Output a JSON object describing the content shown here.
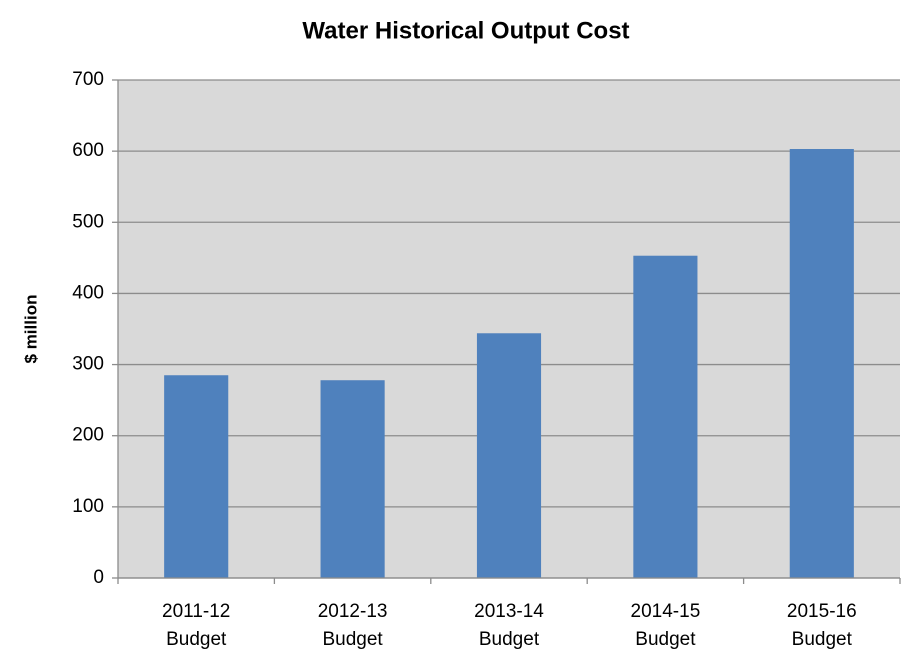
{
  "chart_data": {
    "type": "bar",
    "title": "Water Historical Output Cost",
    "y_label": "$ million",
    "categories": [
      "2011-12 Budget",
      "2012-13 Budget",
      "2013-14 Budget",
      "2014-15 Budget",
      "2015-16 Budget"
    ],
    "values": [
      285,
      278,
      344,
      453,
      603
    ],
    "color": "#4f81bd",
    "ylim": [
      0,
      700
    ],
    "yticks": [
      0,
      100,
      200,
      300,
      400,
      500,
      600,
      700
    ],
    "grid": true
  }
}
